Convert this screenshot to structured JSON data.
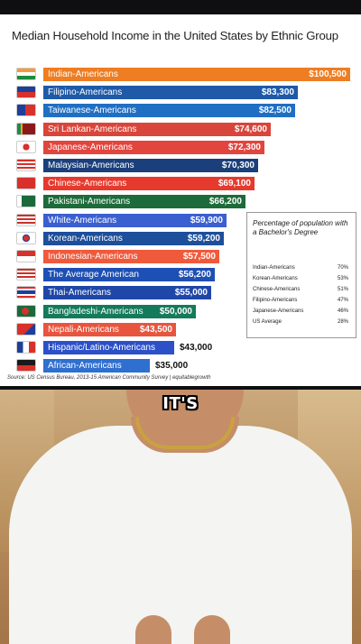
{
  "chart_data": {
    "type": "bar",
    "orientation": "horizontal",
    "title": "Median Household Income in the United States  by Ethnic Group",
    "categories": [
      "Indian-Americans",
      "Filipino-Americans",
      "Taiwanese-Americans",
      "Sri Lankan-Americans",
      "Japanese-Americans",
      "Malaysian-Americans",
      "Chinese-Americans",
      "Pakistani-Americans",
      "White-Americans",
      "Korean-Americans",
      "Indonesian-Americans",
      "The Average American",
      "Thai-Americans",
      "Bangladeshi-Americans",
      "Nepali-Americans",
      "Hispanic/Latino-Americans",
      "African-Americans"
    ],
    "values": [
      100500,
      83300,
      82500,
      74600,
      72300,
      70300,
      69100,
      66200,
      59900,
      59200,
      57500,
      56200,
      55000,
      50000,
      43500,
      43000,
      35000
    ],
    "value_labels": [
      "$100,500",
      "$83,300",
      "$82,500",
      "$74,600",
      "$72,300",
      "$70,300",
      "$69,100",
      "$66,200",
      "$59,900",
      "$59,200",
      "$57,500",
      "$56,200",
      "$55,000",
      "$50,000",
      "$43,500",
      "$43,000",
      "$35,000"
    ],
    "bar_colors": [
      "#ef7d22",
      "#1e5aa8",
      "#1f6fc4",
      "#d9453a",
      "#e2453e",
      "#1b3f7a",
      "#e63a2e",
      "#1d6b3a",
      "#3a5fd0",
      "#1e4f9a",
      "#ef5a3c",
      "#1e4fb4",
      "#1f47a8",
      "#147a5a",
      "#e8553e",
      "#2b50c8",
      "#2e6fd0"
    ],
    "value_inside": [
      true,
      true,
      true,
      true,
      true,
      true,
      true,
      true,
      true,
      true,
      true,
      true,
      true,
      true,
      true,
      false,
      false
    ],
    "xlim": [
      0,
      100500
    ],
    "source": "Source: US Census Bureau, 2013-15 American Community Survey | equitablegrowth",
    "inset": {
      "title": "Percentage of population with a Bachelor's Degree",
      "rows": [
        {
          "group": "Indian-Americans",
          "pct": "70%"
        },
        {
          "group": "Korean-Americans",
          "pct": "53%"
        },
        {
          "group": "Chinese-Americans",
          "pct": "51%"
        },
        {
          "group": "Filipino-Americans",
          "pct": "47%"
        },
        {
          "group": "Japanese-Americans",
          "pct": "46%"
        },
        {
          "group": "US Average",
          "pct": "28%"
        }
      ]
    }
  },
  "video": {
    "caption": "IT'S"
  },
  "flags": [
    "india-flag-icon",
    "philippines-flag-icon",
    "taiwan-flag-icon",
    "sri-lanka-flag-icon",
    "japan-flag-icon",
    "malaysia-flag-icon",
    "china-flag-icon",
    "pakistan-flag-icon",
    "us-flag-icon",
    "south-korea-flag-icon",
    "indonesia-flag-icon",
    "us-flag-icon",
    "thailand-flag-icon",
    "bangladesh-flag-icon",
    "nepal-flag-icon",
    "hispanic-flag-icon",
    "africa-flag-icon"
  ]
}
